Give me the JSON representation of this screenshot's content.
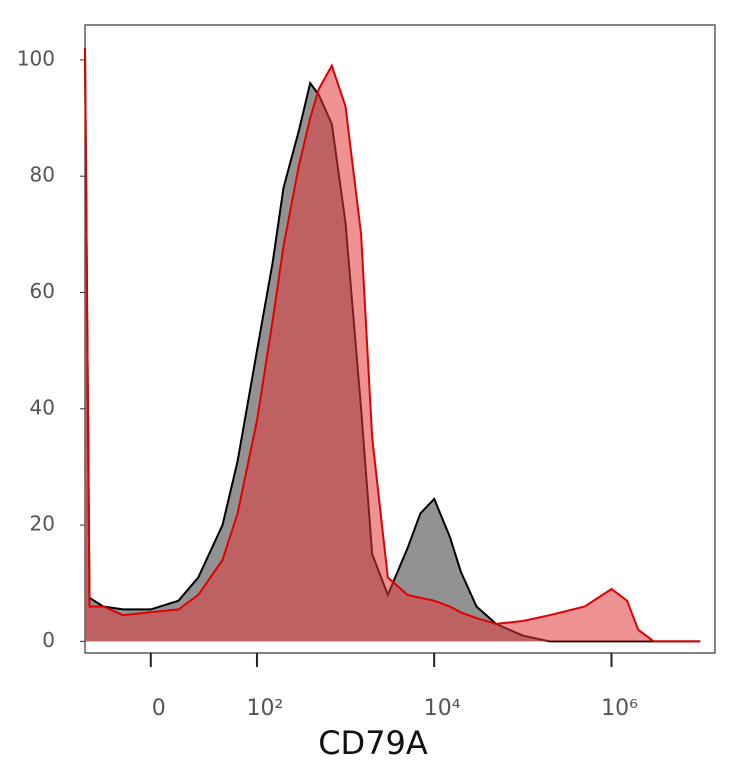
{
  "chart_data": {
    "type": "area",
    "x_label": "CD79A",
    "xscale": "biexponential",
    "xlim": [
      -34,
      14700000
    ],
    "xticks": [
      0,
      {
        "value": 100,
        "label": "10²"
      },
      {
        "value": 10000,
        "label": "10⁴"
      },
      {
        "value": 1000000,
        "label": "10⁶"
      }
    ],
    "ylim": [
      -2,
      106
    ],
    "yticks": [
      0,
      20,
      40,
      60,
      80,
      100
    ],
    "x": [
      -34,
      -30,
      -20,
      -10,
      0,
      10,
      20,
      40,
      60,
      100,
      150,
      200,
      300,
      400,
      500,
      700,
      1000,
      1500,
      2000,
      3000,
      5000,
      7000,
      10000,
      15000,
      20000,
      30000,
      50000,
      100000,
      200000,
      500000,
      1000000,
      1500000,
      2000000,
      3000000,
      5000000,
      10000000
    ],
    "series": [
      {
        "color": "#6e6e6e",
        "line_color": "#000000",
        "values": [
          102,
          7.5,
          6,
          5.5,
          5.5,
          7,
          11,
          20,
          31,
          50,
          65,
          78,
          88,
          96,
          94,
          89,
          72,
          40,
          15,
          8,
          16,
          22,
          24.5,
          18,
          12,
          6,
          3,
          1,
          0,
          0,
          0,
          0,
          0,
          0,
          0,
          0
        ]
      },
      {
        "color": "#e0383a",
        "line_color": "#e00000",
        "values": [
          102,
          6,
          6,
          4.5,
          5,
          5.5,
          8,
          14,
          22,
          38,
          55,
          68,
          82,
          90,
          95,
          99,
          92,
          70,
          35,
          11,
          8,
          7.5,
          7,
          6,
          5,
          4,
          3,
          3.5,
          4.5,
          6,
          9,
          7,
          2,
          0,
          0,
          0
        ]
      }
    ]
  }
}
